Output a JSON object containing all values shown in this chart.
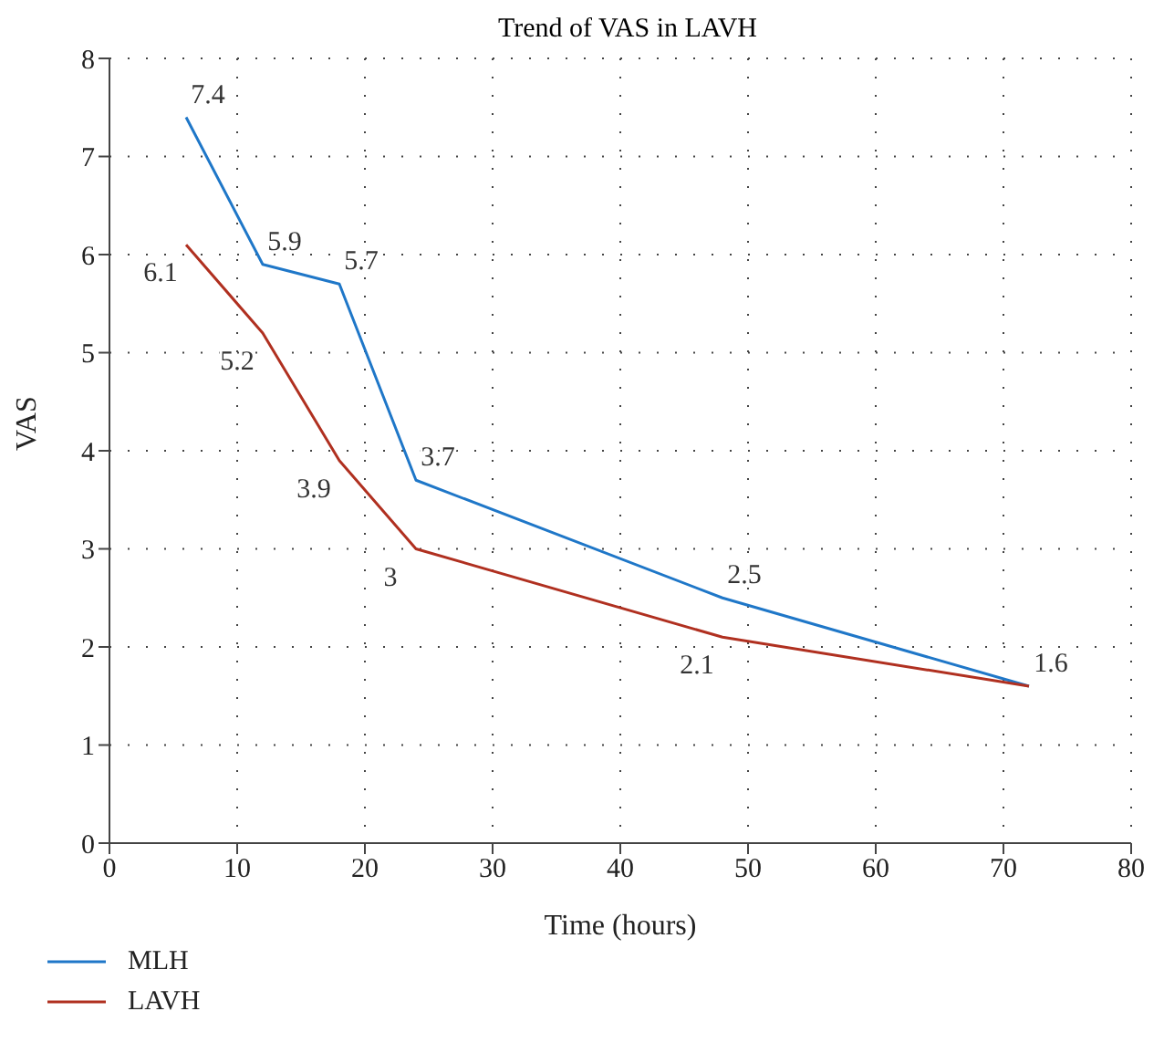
{
  "chart_data": {
    "type": "line",
    "title": "Trend of VAS in LAVH",
    "xlabel": "Time (hours)",
    "ylabel": "VAS",
    "x": [
      6,
      12,
      18,
      24,
      48,
      72
    ],
    "series": [
      {
        "name": "MLH",
        "color": "#1f77c8",
        "values": [
          7.4,
          5.9,
          5.7,
          3.7,
          2.5,
          1.6
        ],
        "value_labels": [
          "7.4",
          "5.9",
          "5.7",
          "3.7",
          "2.5",
          "1.6"
        ]
      },
      {
        "name": "LAVH",
        "color": "#b03020",
        "values": [
          6.1,
          5.2,
          3.9,
          3,
          2.1,
          1.6
        ],
        "value_labels": [
          "6.1",
          "5.2",
          "3.9",
          "3",
          "2.1",
          null
        ]
      }
    ],
    "xlim": [
      0,
      80
    ],
    "xticks": [
      0,
      10,
      20,
      30,
      40,
      50,
      60,
      70,
      80
    ],
    "ylim": [
      0,
      8
    ],
    "yticks": [
      0,
      1,
      2,
      3,
      4,
      5,
      6,
      7,
      8
    ],
    "grid": true,
    "legend": "bottom left",
    "marker": "none",
    "line_style": "solid"
  }
}
